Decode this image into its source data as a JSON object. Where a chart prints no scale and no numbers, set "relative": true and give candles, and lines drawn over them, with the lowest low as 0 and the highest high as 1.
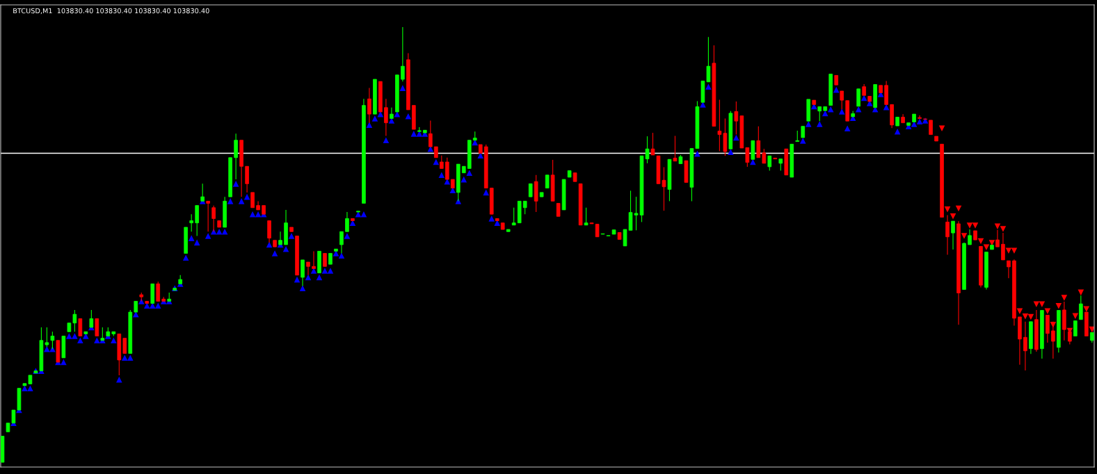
{
  "chart_data": {
    "type": "candlestick",
    "title": "BTCUSD,M1  103830.40 103830.40 103830.40 103830.40",
    "relative": true,
    "categories": [
      null,
      null,
      null,
      null,
      null,
      null,
      null,
      null,
      null,
      null,
      null,
      null,
      null,
      null,
      null,
      null,
      null,
      null,
      null,
      null,
      null,
      null,
      null,
      null,
      null,
      null,
      null,
      null,
      null,
      null,
      null,
      null,
      null,
      null,
      null,
      null,
      null,
      null,
      null,
      null,
      null,
      null,
      null,
      null,
      null,
      null,
      null,
      null,
      null,
      null,
      null,
      null,
      null,
      null,
      null,
      null,
      null,
      null,
      null,
      null,
      null,
      null,
      null,
      null,
      null,
      null,
      null,
      null,
      null,
      null,
      null,
      null,
      null,
      null,
      null,
      null,
      null,
      null,
      null,
      null,
      null,
      null,
      null,
      null,
      null,
      null,
      null,
      null,
      null,
      null,
      null,
      null,
      null,
      null,
      null,
      null,
      null,
      null,
      null,
      null,
      null,
      null,
      null,
      null,
      null,
      null,
      null,
      null,
      null,
      null,
      null,
      null,
      null,
      null,
      null,
      null,
      null,
      null,
      null,
      null,
      null,
      null,
      null,
      null,
      null,
      null,
      null,
      null,
      null,
      null,
      null,
      null,
      null,
      null,
      null,
      null,
      null,
      null,
      null,
      null,
      null,
      null,
      null,
      null,
      null,
      null,
      null,
      null,
      null,
      null,
      null,
      null,
      null,
      null,
      null,
      null,
      null,
      null,
      null,
      null,
      null,
      null,
      null,
      null,
      null,
      null,
      null,
      null,
      null,
      null,
      null,
      null,
      null,
      null,
      null,
      null,
      null,
      null,
      null,
      null,
      null,
      null,
      null,
      null,
      null,
      null,
      null,
      null,
      null,
      null,
      null,
      null,
      null,
      null,
      null,
      null,
      null
    ],
    "ohlc": [
      [
        0,
        0.06,
        0,
        0.06
      ],
      [
        0.07,
        0.09,
        0.07,
        0.09
      ],
      [
        0.09,
        0.12,
        0.09,
        0.12
      ],
      [
        0.12,
        0.17,
        0.12,
        0.17
      ],
      [
        0.176,
        0.181,
        0.176,
        0.181
      ],
      [
        0.18,
        0.2,
        0.18,
        0.2
      ],
      [
        0.205,
        0.21,
        0.205,
        0.21
      ],
      [
        0.21,
        0.31,
        0.21,
        0.28
      ],
      [
        0.27,
        0.31,
        0.265,
        0.275
      ],
      [
        0.28,
        0.3,
        0.26,
        0.29
      ],
      [
        0.28,
        0.28,
        0.23,
        0.23
      ],
      [
        0.24,
        0.29,
        0.24,
        0.29
      ],
      [
        0.3,
        0.32,
        0.3,
        0.32
      ],
      [
        0.32,
        0.35,
        0.3,
        0.34
      ],
      [
        0.33,
        0.33,
        0.29,
        0.29
      ],
      [
        0.295,
        0.3,
        0.295,
        0.3
      ],
      [
        0.31,
        0.35,
        0.31,
        0.33
      ],
      [
        0.33,
        0.33,
        0.29,
        0.29
      ],
      [
        0.28,
        0.31,
        0.28,
        0.285
      ],
      [
        0.29,
        0.31,
        0.29,
        0.3
      ],
      [
        0.295,
        0.3,
        0.29,
        0.3
      ],
      [
        0.295,
        0.295,
        0.2,
        0.235
      ],
      [
        0.285,
        0.285,
        0.25,
        0.25
      ],
      [
        0.25,
        0.35,
        0.25,
        0.345
      ],
      [
        0.345,
        0.37,
        0.345,
        0.37
      ],
      [
        0.385,
        0.39,
        0.37,
        0.38
      ],
      [
        0.37,
        0.37,
        0.365,
        0.365
      ],
      [
        0.365,
        0.41,
        0.365,
        0.41
      ],
      [
        0.41,
        0.415,
        0.37,
        0.37
      ],
      [
        0.375,
        0.38,
        0.37,
        0.37
      ],
      [
        0.37,
        0.39,
        0.37,
        0.375
      ],
      [
        0.395,
        0.4,
        0.395,
        0.4
      ],
      [
        0.41,
        0.43,
        0.41,
        0.42
      ],
      [
        0.48,
        0.54,
        0.48,
        0.54
      ],
      [
        0.55,
        0.57,
        0.53,
        0.555
      ],
      [
        0.55,
        0.59,
        0.52,
        0.59
      ],
      [
        0.6,
        0.64,
        0.6,
        0.61
      ],
      [
        0.6,
        0.6,
        0.53,
        0.595
      ],
      [
        0.585,
        0.59,
        0.53,
        0.56
      ],
      [
        0.555,
        0.555,
        0.54,
        0.54
      ],
      [
        0.54,
        0.61,
        0.54,
        0.6
      ],
      [
        0.61,
        0.7,
        0.61,
        0.7
      ],
      [
        0.7,
        0.755,
        0.65,
        0.74
      ],
      [
        0.74,
        0.74,
        0.61,
        0.68
      ],
      [
        0.68,
        0.68,
        0.62,
        0.64
      ],
      [
        0.62,
        0.62,
        0.585,
        0.585
      ],
      [
        0.59,
        0.6,
        0.58,
        0.58
      ],
      [
        0.59,
        0.59,
        0.57,
        0.57
      ],
      [
        0.555,
        0.555,
        0.505,
        0.515
      ],
      [
        0.51,
        0.51,
        0.495,
        0.495
      ],
      [
        0.5,
        0.53,
        0.5,
        0.51
      ],
      [
        0.5,
        0.58,
        0.5,
        0.55
      ],
      [
        0.54,
        0.54,
        0.53,
        0.53
      ],
      [
        0.52,
        0.52,
        0.43,
        0.43
      ],
      [
        0.425,
        0.465,
        0.405,
        0.465
      ],
      [
        0.46,
        0.46,
        0.43,
        0.45
      ],
      [
        0.45,
        0.485,
        0.445,
        0.445
      ],
      [
        0.435,
        0.485,
        0.435,
        0.485
      ],
      [
        0.48,
        0.48,
        0.45,
        0.45
      ],
      [
        0.455,
        0.48,
        0.455,
        0.48
      ],
      [
        0.485,
        0.49,
        0.485,
        0.49
      ],
      [
        0.5,
        0.53,
        0.48,
        0.53
      ],
      [
        0.53,
        0.575,
        0.53,
        0.56
      ],
      [
        0.56,
        0.56,
        0.555,
        0.555
      ],
      [
        0.575,
        0.577,
        0.575,
        0.577
      ],
      [
        0.595,
        0.835,
        0.595,
        0.82
      ],
      [
        0.835,
        0.86,
        0.78,
        0.8
      ],
      [
        0.8,
        0.88,
        0.8,
        0.88
      ],
      [
        0.875,
        0.875,
        0.805,
        0.805
      ],
      [
        0.815,
        0.835,
        0.75,
        0.78
      ],
      [
        0.79,
        0.815,
        0.79,
        0.8
      ],
      [
        0.805,
        0.89,
        0.805,
        0.89
      ],
      [
        0.88,
        1,
        0.875,
        0.91
      ],
      [
        0.925,
        0.94,
        0.81,
        0.81
      ],
      [
        0.82,
        0.82,
        0.765,
        0.765
      ],
      [
        0.76,
        0.77,
        0.76,
        0.762
      ],
      [
        0.757,
        0.763,
        0.757,
        0.763
      ],
      [
        0.755,
        0.785,
        0.725,
        0.725
      ],
      [
        0.725,
        0.725,
        0.7,
        0.7
      ],
      [
        0.69,
        0.705,
        0.675,
        0.675
      ],
      [
        0.69,
        0.7,
        0.65,
        0.65
      ],
      [
        0.65,
        0.65,
        0.63,
        0.63
      ],
      [
        0.62,
        0.685,
        0.6,
        0.685
      ],
      [
        0.665,
        0.68,
        0.665,
        0.68
      ],
      [
        0.675,
        0.74,
        0.675,
        0.74
      ],
      [
        0.74,
        0.76,
        0.74,
        0.745
      ],
      [
        0.73,
        0.73,
        0.71,
        0.71
      ],
      [
        0.725,
        0.73,
        0.63,
        0.63
      ],
      [
        0.63,
        0.63,
        0.57,
        0.57
      ],
      [
        0.56,
        0.56,
        0.555,
        0.555
      ],
      [
        0.55,
        0.55,
        0.535,
        0.535
      ],
      [
        0.53,
        0.535,
        0.53,
        0.535
      ],
      [
        0.545,
        0.585,
        0.545,
        0.55
      ],
      [
        0.55,
        0.6,
        0.55,
        0.6
      ],
      [
        0.585,
        0.6,
        0.57,
        0.6
      ],
      [
        0.61,
        0.64,
        0.61,
        0.64
      ],
      [
        0.645,
        0.66,
        0.575,
        0.6
      ],
      [
        0.61,
        0.62,
        0.61,
        0.62
      ],
      [
        0.63,
        0.66,
        0.63,
        0.66
      ],
      [
        0.66,
        0.695,
        0.6,
        0.6
      ],
      [
        0.595,
        0.595,
        0.565,
        0.565
      ],
      [
        0.58,
        0.65,
        0.58,
        0.65
      ],
      [
        0.655,
        0.67,
        0.655,
        0.67
      ],
      [
        0.665,
        0.665,
        0.645,
        0.645
      ],
      [
        0.64,
        0.64,
        0.545,
        0.545
      ],
      [
        0.545,
        0.585,
        0.545,
        0.55
      ],
      [
        0.55,
        0.55,
        0.548,
        0.548
      ],
      [
        0.547,
        0.547,
        0.518,
        0.518
      ],
      [
        0.524,
        0.525,
        0.524,
        0.525
      ],
      [
        0.52,
        0.521,
        0.52,
        0.521
      ],
      [
        0.524,
        0.534,
        0.524,
        0.534
      ],
      [
        0.528,
        0.528,
        0.512,
        0.512
      ],
      [
        0.497,
        0.535,
        0.497,
        0.535
      ],
      [
        0.533,
        0.624,
        0.533,
        0.574
      ],
      [
        0.568,
        0.61,
        0.533,
        0.572
      ],
      [
        0.568,
        0.704,
        0.552,
        0.704
      ],
      [
        0.697,
        0.749,
        0.687,
        0.72
      ],
      [
        0.72,
        0.757,
        0.706,
        0.706
      ],
      [
        0.704,
        0.704,
        0.64,
        0.64
      ],
      [
        0.648,
        0.678,
        0.578,
        0.633
      ],
      [
        0.627,
        0.696,
        0.6,
        0.696
      ],
      [
        0.699,
        0.75,
        0.692,
        0.692
      ],
      [
        0.686,
        0.706,
        0.686,
        0.702
      ],
      [
        0.693,
        0.693,
        0.643,
        0.643
      ],
      [
        0.632,
        0.721,
        0.6,
        0.721
      ],
      [
        0.721,
        0.83,
        0.721,
        0.817
      ],
      [
        0.827,
        0.876,
        0.827,
        0.876
      ],
      [
        0.874,
        0.977,
        0.874,
        0.91
      ],
      [
        0.917,
        0.958,
        0.772,
        0.772
      ],
      [
        0.761,
        0.833,
        0.715,
        0.753
      ],
      [
        0.756,
        0.79,
        0.704,
        0.714
      ],
      [
        0.72,
        0.807,
        0.72,
        0.802
      ],
      [
        0.806,
        0.829,
        0.753,
        0.784
      ],
      [
        0.796,
        0.796,
        0.722,
        0.722
      ],
      [
        0.723,
        0.723,
        0.679,
        0.689
      ],
      [
        0.696,
        0.739,
        0.696,
        0.739
      ],
      [
        0.739,
        0.772,
        0.7,
        0.7
      ],
      [
        0.711,
        0.72,
        0.687,
        0.687
      ],
      [
        0.679,
        0.704,
        0.67,
        0.704
      ],
      [
        0.699,
        0.699,
        0.697,
        0.697
      ],
      [
        0.687,
        0.697,
        0.67,
        0.697
      ],
      [
        0.72,
        0.72,
        0.66,
        0.66
      ],
      [
        0.655,
        0.731,
        0.655,
        0.731
      ],
      [
        0.737,
        0.762,
        0.737,
        0.739
      ],
      [
        0.746,
        0.772,
        0.746,
        0.772
      ],
      [
        0.784,
        0.834,
        0.784,
        0.834
      ],
      [
        0.832,
        0.832,
        0.822,
        0.822
      ],
      [
        0.807,
        0.817,
        0.784,
        0.817
      ],
      [
        0.808,
        0.817,
        0.808,
        0.817
      ],
      [
        0.82,
        0.892,
        0.82,
        0.892
      ],
      [
        0.889,
        0.889,
        0.867,
        0.867
      ],
      [
        0.853,
        0.853,
        0.811,
        0.832
      ],
      [
        0.831,
        0.831,
        0.784,
        0.784
      ],
      [
        0.794,
        0.807,
        0.794,
        0.801
      ],
      [
        0.818,
        0.858,
        0.818,
        0.858
      ],
      [
        0.863,
        0.869,
        0.843,
        0.843
      ],
      [
        0.841,
        0.841,
        0.829,
        0.829
      ],
      [
        0.815,
        0.868,
        0.815,
        0.868
      ],
      [
        0.866,
        0.866,
        0.849,
        0.849
      ],
      [
        0.866,
        0.876,
        0.822,
        0.822
      ],
      [
        0.822,
        0.822,
        0.768,
        0.775
      ],
      [
        0.773,
        0.793,
        0.773,
        0.793
      ],
      [
        0.793,
        0.8,
        0.78,
        0.78
      ],
      [
        0.774,
        0.78,
        0.774,
        0.78
      ],
      [
        0.782,
        0.8,
        0.782,
        0.8
      ],
      [
        0.792,
        0.797,
        0.79,
        0.79
      ],
      [
        0.789,
        0.789,
        0.788,
        0.788
      ],
      [
        0.786,
        0.786,
        0.753,
        0.753
      ],
      [
        0.749,
        0.749,
        0.738,
        0.738
      ],
      [
        0.731,
        0.731,
        0.563,
        0.563
      ],
      [
        0.552,
        0.568,
        0.477,
        0.518
      ],
      [
        0.527,
        0.554,
        0.489,
        0.554
      ],
      [
        0.548,
        0.554,
        0.316,
        0.389
      ],
      [
        0.397,
        0.505,
        0.397,
        0.503
      ],
      [
        0.5,
        0.535,
        0.5,
        0.521
      ],
      [
        0.532,
        0.532,
        0.511,
        0.511
      ],
      [
        0.496,
        0.496,
        0.402,
        0.407
      ],
      [
        0.402,
        0.483,
        0.397,
        0.483
      ],
      [
        0.489,
        0.499,
        0.489,
        0.499
      ],
      [
        0.511,
        0.534,
        0.495,
        0.495
      ],
      [
        0.501,
        0.527,
        0.465,
        0.465
      ],
      [
        0.463,
        0.463,
        0.423,
        0.449
      ],
      [
        0.463,
        0.466,
        0.314,
        0.331
      ],
      [
        0.334,
        0.334,
        0.224,
        0.283
      ],
      [
        0.287,
        0.323,
        0.211,
        0.256
      ],
      [
        0.261,
        0.323,
        0.249,
        0.323
      ],
      [
        0.328,
        0.35,
        0.254,
        0.259
      ],
      [
        0.261,
        0.349,
        0.238,
        0.349
      ],
      [
        0.338,
        0.338,
        0.275,
        0.296
      ],
      [
        0.302,
        0.323,
        0.238,
        0.278
      ],
      [
        0.264,
        0.349,
        0.252,
        0.349
      ],
      [
        0.35,
        0.369,
        0.28,
        0.305
      ],
      [
        0.3,
        0.3,
        0.271,
        0.278
      ],
      [
        0.29,
        0.325,
        0.29,
        0.325
      ],
      [
        0.328,
        0.383,
        0.328,
        0.364
      ],
      [
        0.345,
        0.345,
        0.29,
        0.29
      ],
      [
        0.28,
        0.298,
        0.275,
        0.298
      ]
    ],
    "colors": [
      "#00ff00",
      "#00ff00",
      "#00ff00",
      "#00ff00",
      "#00ff00",
      "#00ff00",
      "#00ff00",
      "#00ff00",
      "#00ff00",
      "#00ff00",
      "#ff0000",
      "#00ff00",
      "#00ff00",
      "#00ff00",
      "#ff0000",
      "#00ff00",
      "#00ff00",
      "#ff0000",
      "#00ff00",
      "#00ff00",
      "#00ff00",
      "#ff0000",
      "#ff0000",
      "#00ff00",
      "#00ff00",
      "#ff0000",
      "#ff0000",
      "#00ff00",
      "#ff0000",
      "#ff0000",
      "#00ff00",
      "#00ff00",
      "#00ff00",
      "#00ff00",
      "#00ff00",
      "#00ff00",
      "#00ff00",
      "#ff0000",
      "#ff0000",
      "#ff0000",
      "#00ff00",
      "#00ff00",
      "#00ff00",
      "#ff0000",
      "#ff0000",
      "#ff0000",
      "#ff0000",
      "#ff0000",
      "#ff0000",
      "#ff0000",
      "#00ff00",
      "#00ff00",
      "#ff0000",
      "#ff0000",
      "#00ff00",
      "#ff0000",
      "#ff0000",
      "#00ff00",
      "#ff0000",
      "#00ff00",
      "#00ff00",
      "#00ff00",
      "#00ff00",
      "#ff0000",
      "#00ff00",
      "#00ff00",
      "#ff0000",
      "#00ff00",
      "#ff0000",
      "#ff0000",
      "#00ff00",
      "#00ff00",
      "#00ff00",
      "#ff0000",
      "#ff0000",
      "#00ff00",
      "#00ff00",
      "#ff0000",
      "#ff0000",
      "#ff0000",
      "#ff0000",
      "#ff0000",
      "#00ff00",
      "#00ff00",
      "#00ff00",
      "#00ff00",
      "#ff0000",
      "#ff0000",
      "#ff0000",
      "#ff0000",
      "#ff0000",
      "#00ff00",
      "#00ff00",
      "#00ff00",
      "#00ff00",
      "#00ff00",
      "#ff0000",
      "#00ff00",
      "#00ff00",
      "#ff0000",
      "#ff0000",
      "#00ff00",
      "#00ff00",
      "#ff0000",
      "#ff0000",
      "#00ff00",
      "#ff0000",
      "#ff0000",
      "#00ff00",
      "#00ff00",
      "#00ff00",
      "#ff0000",
      "#00ff00",
      "#00ff00",
      "#00ff00",
      "#00ff00",
      "#00ff00",
      "#ff0000",
      "#ff0000",
      "#ff0000",
      "#00ff00",
      "#ff0000",
      "#00ff00",
      "#ff0000",
      "#00ff00",
      "#00ff00",
      "#00ff00",
      "#00ff00",
      "#ff0000",
      "#ff0000",
      "#ff0000",
      "#00ff00",
      "#ff0000",
      "#ff0000",
      "#ff0000",
      "#00ff00",
      "#ff0000",
      "#ff0000",
      "#00ff00",
      "#ff0000",
      "#00ff00",
      "#ff0000",
      "#00ff00",
      "#00ff00",
      "#00ff00",
      "#00ff00",
      "#ff0000",
      "#00ff00",
      "#00ff00",
      "#00ff00",
      "#ff0000",
      "#ff0000",
      "#ff0000",
      "#00ff00",
      "#00ff00",
      "#ff0000",
      "#ff0000",
      "#00ff00",
      "#ff0000",
      "#ff0000",
      "#ff0000",
      "#00ff00",
      "#ff0000",
      "#00ff00",
      "#00ff00",
      "#ff0000",
      "#ff0000",
      "#ff0000",
      "#ff0000",
      "#ff0000",
      "#ff0000",
      "#00ff00",
      "#ff0000",
      "#00ff00",
      "#00ff00",
      "#ff0000",
      "#ff0000",
      "#00ff00",
      "#00ff00",
      "#ff0000",
      "#ff0000",
      "#ff0000",
      "#ff0000",
      "#ff0000",
      "#ff0000",
      "#00ff00",
      "#ff0000",
      "#00ff00",
      "#ff0000",
      "#ff0000",
      "#00ff00",
      "#ff0000",
      "#ff0000",
      "#00ff00",
      "#00ff00",
      "#ff0000",
      "#00ff00"
    ],
    "ref_lines": [
      {
        "axis": "y",
        "value": 0.71,
        "color": "#ffffff"
      }
    ],
    "series": [
      {
        "type": "scatter",
        "color": "#0000ff",
        "marker": "triangle",
        "values": [
          null,
          null,
          0.09,
          0.12,
          0.17,
          0.17,
          0.21,
          0.21,
          0.26,
          0.26,
          0.23,
          0.23,
          0.29,
          0.29,
          0.28,
          0.29,
          0.31,
          0.28,
          0.28,
          0.29,
          0.28,
          0.19,
          0.24,
          0.24,
          0.34,
          0.37,
          0.36,
          0.36,
          0.36,
          0.37,
          0.37,
          0.4,
          0.41,
          0.47,
          0.515,
          0.505,
          0.6,
          0.52,
          0.53,
          0.53,
          0.53,
          0.6,
          0.64,
          0.6,
          0.61,
          0.57,
          0.57,
          0.57,
          0.5,
          0.48,
          0.5,
          0.49,
          0.52,
          0.42,
          0.4,
          0.425,
          0.44,
          0.425,
          0.44,
          0.44,
          0.48,
          0.475,
          0.52,
          0.55,
          0.57,
          0.57,
          0.775,
          0.79,
          0.8,
          0.74,
          0.785,
          0.8,
          0.86,
          0.795,
          0.755,
          0.755,
          0.755,
          0.72,
          0.69,
          0.66,
          0.645,
          0.625,
          0.6,
          0.65,
          0.665,
          0.735,
          0.705,
          0.62,
          0.56,
          0.55,
          null,
          null,
          null,
          null,
          null,
          null,
          null,
          null,
          null,
          null,
          null,
          null,
          null,
          null,
          null,
          null,
          null,
          null,
          null,
          null,
          null,
          null,
          null,
          null,
          null,
          null,
          null,
          null,
          null,
          null,
          null,
          null,
          null,
          null,
          null,
          0.709,
          0.822,
          0.863,
          null,
          null,
          null,
          0.713,
          0.746,
          null,
          null,
          0.69,
          null,
          null,
          null,
          null,
          null,
          null,
          null,
          null,
          0.739,
          0.777,
          0.818,
          0.777,
          0.802,
          0.811,
          0.856,
          0.806,
          0.767,
          0.791,
          0.811,
          0.837,
          0.825,
          0.811,
          0.846,
          0.816,
          null,
          0.76,
          null,
          0.772,
          0.777,
          0.783,
          0.785,
          null,
          null,
          null,
          null,
          null,
          null,
          null,
          null,
          null,
          null,
          null,
          null,
          null,
          null,
          null,
          null,
          null,
          null,
          null,
          null,
          null,
          null,
          null,
          null,
          null,
          null,
          null,
          null,
          null,
          null
        ]
      },
      {
        "type": "scatter",
        "color": "#ff0000",
        "marker": "triangle_down",
        "values": [
          null,
          null,
          null,
          null,
          null,
          null,
          null,
          null,
          null,
          null,
          null,
          null,
          null,
          null,
          null,
          null,
          null,
          null,
          null,
          null,
          null,
          null,
          null,
          null,
          null,
          null,
          null,
          null,
          null,
          null,
          null,
          null,
          null,
          null,
          null,
          null,
          null,
          null,
          null,
          null,
          null,
          null,
          null,
          null,
          null,
          null,
          null,
          null,
          null,
          null,
          null,
          null,
          null,
          null,
          null,
          null,
          null,
          null,
          null,
          null,
          null,
          null,
          null,
          null,
          null,
          null,
          null,
          null,
          null,
          null,
          null,
          null,
          null,
          null,
          null,
          null,
          null,
          null,
          null,
          null,
          null,
          null,
          null,
          null,
          null,
          null,
          null,
          null,
          null,
          null,
          null,
          null,
          null,
          null,
          null,
          null,
          null,
          null,
          null,
          null,
          null,
          null,
          null,
          null,
          null,
          null,
          null,
          null,
          null,
          null,
          null,
          null,
          null,
          null,
          null,
          null,
          null,
          null,
          null,
          null,
          null,
          null,
          null,
          null,
          null,
          null,
          null,
          null,
          null,
          null,
          null,
          null,
          null,
          null,
          null,
          null,
          null,
          null,
          null,
          null,
          null,
          null,
          null,
          null,
          null,
          null,
          null,
          null,
          null,
          null,
          null,
          null,
          null,
          null,
          null,
          null,
          null,
          null,
          null,
          null,
          null,
          null,
          null,
          null,
          null,
          null,
          null,
          null,
          null,
          0.767,
          0.581,
          0.565,
          0.583,
          0.52,
          0.544,
          0.544,
          0.508,
          0.494,
          0.504,
          0.542,
          0.536,
          0.486,
          0.486,
          0.347,
          0.335,
          0.334,
          0.363,
          0.363,
          0.347,
          0.316,
          0.359,
          0.378,
          0.302,
          0.336,
          0.39,
          0.352,
          0.305
        ]
      }
    ]
  }
}
